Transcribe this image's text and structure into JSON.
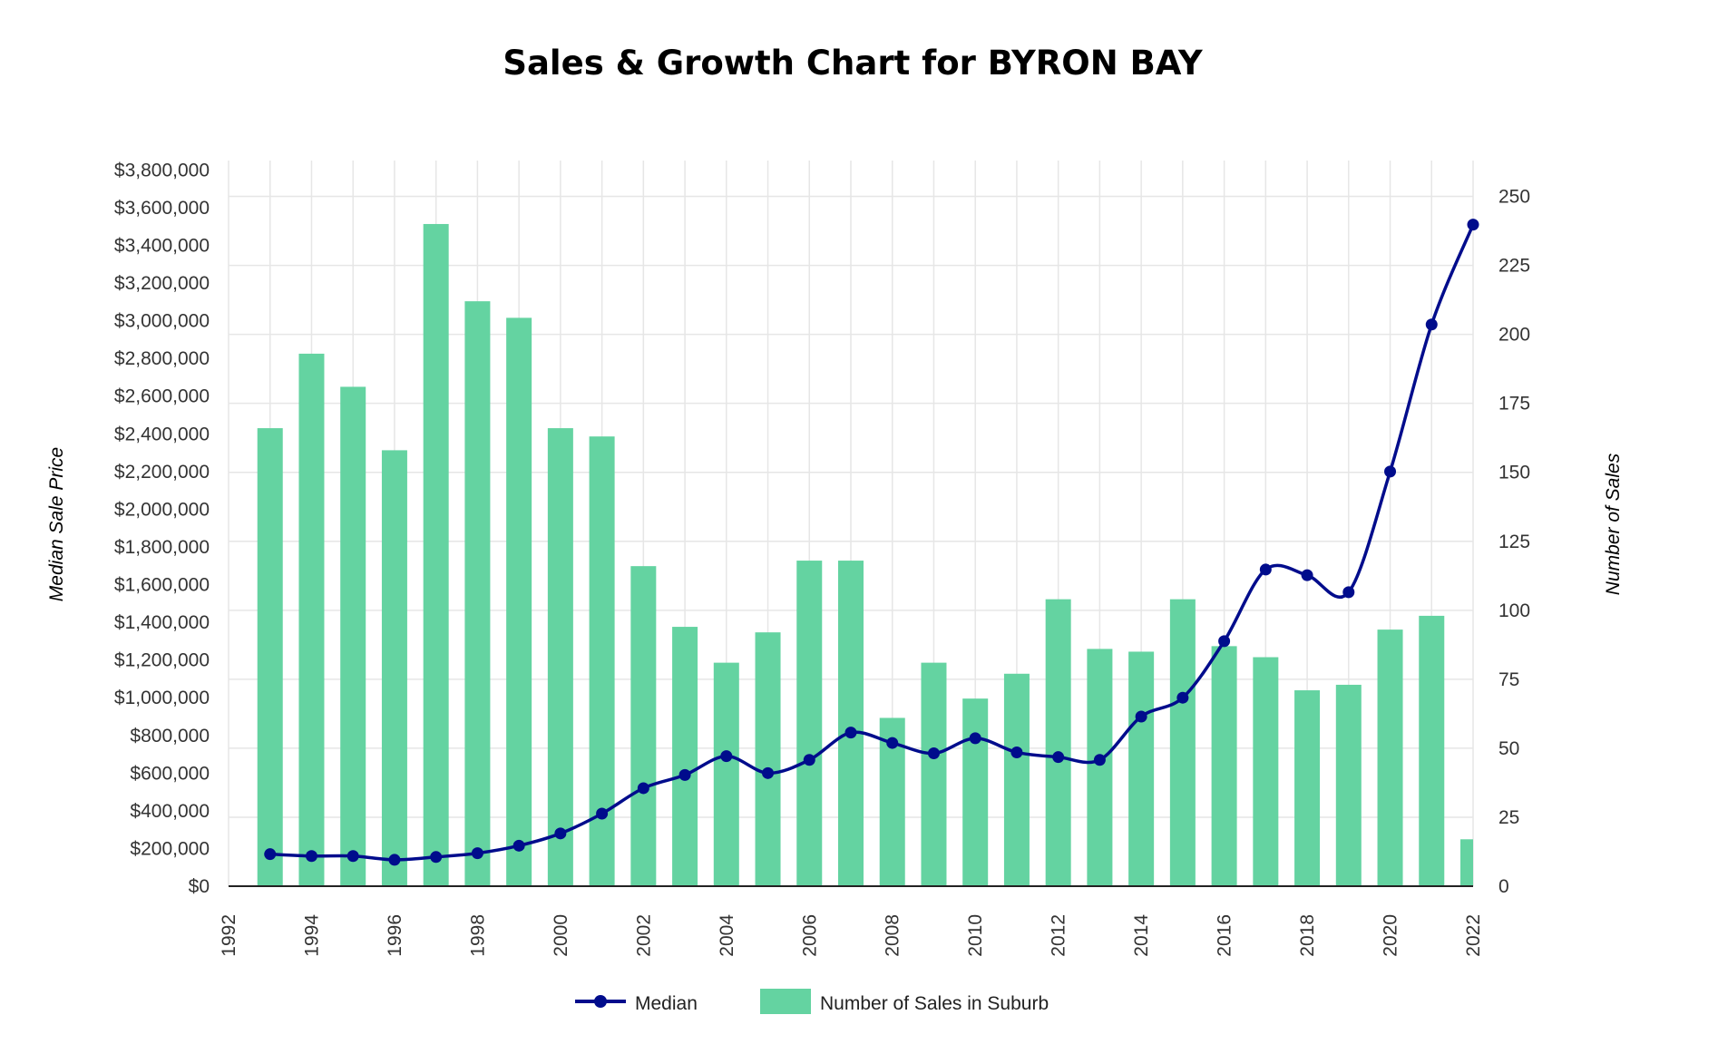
{
  "chart_data": {
    "type": "bar",
    "title": "Sales & Growth Chart for BYRON BAY",
    "xlabel": "",
    "ylabel": "Median Sale Price",
    "y2label": "Number of Sales",
    "grid": true,
    "legend_position": "bottom",
    "xlim": [
      1992,
      2022
    ],
    "x_ticks": [
      "1992",
      "1994",
      "1996",
      "1998",
      "2000",
      "2002",
      "2004",
      "2006",
      "2008",
      "2010",
      "2012",
      "2014",
      "2016",
      "2018",
      "2020",
      "2022"
    ],
    "ylim": [
      0,
      3850000
    ],
    "y_ticks": [
      "$0",
      "$200,000",
      "$400,000",
      "$600,000",
      "$800,000",
      "$1,000,000",
      "$1,200,000",
      "$1,400,000",
      "$1,600,000",
      "$1,800,000",
      "$2,000,000",
      "$2,200,000",
      "$2,400,000",
      "$2,600,000",
      "$2,800,000",
      "$3,000,000",
      "$3,200,000",
      "$3,400,000",
      "$3,600,000",
      "$3,800,000"
    ],
    "y2lim": [
      0,
      263
    ],
    "y2_ticks": [
      "0",
      "25",
      "50",
      "75",
      "100",
      "125",
      "150",
      "175",
      "200",
      "225",
      "250"
    ],
    "series": [
      {
        "name": "Number of Sales in Suburb",
        "type": "bar",
        "axis": "right",
        "color": "#64d3a1",
        "x": [
          1993,
          1994,
          1995,
          1996,
          1997,
          1998,
          1999,
          2000,
          2001,
          2002,
          2003,
          2004,
          2005,
          2006,
          2007,
          2008,
          2009,
          2010,
          2011,
          2012,
          2013,
          2014,
          2015,
          2016,
          2017,
          2018,
          2019,
          2020,
          2021,
          2022
        ],
        "values": [
          166,
          193,
          181,
          158,
          240,
          212,
          206,
          166,
          163,
          116,
          94,
          81,
          92,
          118,
          118,
          61,
          81,
          68,
          77,
          104,
          86,
          85,
          104,
          87,
          83,
          71,
          73,
          93,
          98,
          17
        ]
      },
      {
        "name": "Median",
        "type": "line",
        "axis": "left",
        "color": "#000c8c",
        "x": [
          1993,
          1994,
          1995,
          1996,
          1997,
          1998,
          1999,
          2000,
          2001,
          2002,
          2003,
          2004,
          2005,
          2006,
          2007,
          2008,
          2009,
          2010,
          2011,
          2012,
          2013,
          2014,
          2015,
          2016,
          2017,
          2018,
          2019,
          2020,
          2021,
          2022
        ],
        "values": [
          170000,
          160000,
          160000,
          140000,
          155000,
          175000,
          215000,
          280000,
          385000,
          520000,
          590000,
          690000,
          600000,
          670000,
          815000,
          760000,
          705000,
          785000,
          710000,
          685000,
          670000,
          900000,
          1000000,
          1300000,
          1680000,
          1650000,
          1560000,
          2200000,
          2980000,
          3510000
        ]
      }
    ]
  }
}
